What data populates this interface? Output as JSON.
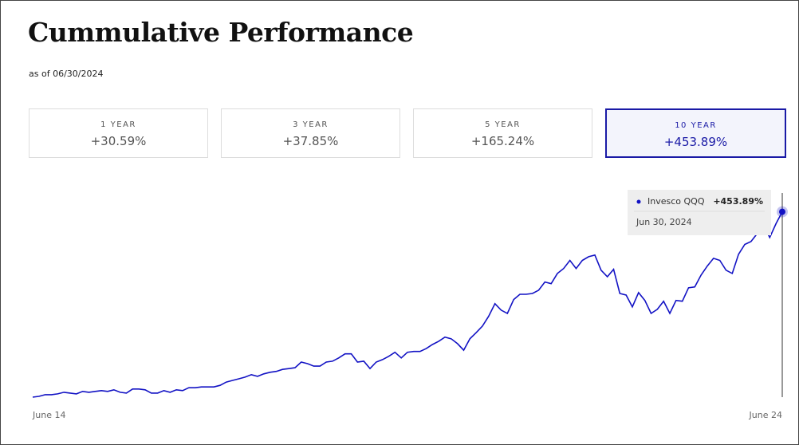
{
  "header": {
    "title": "Cummulative Performance",
    "subtitle": "as of 06/30/2024"
  },
  "tabs": [
    {
      "period": "1 YEAR",
      "value": "+30.59%"
    },
    {
      "period": "3 YEAR",
      "value": "+37.85%"
    },
    {
      "period": "5 YEAR",
      "value": "+165.24%"
    },
    {
      "period": "10 YEAR",
      "value": "+453.89%"
    }
  ],
  "selected_tab": 3,
  "chart_data": {
    "type": "line",
    "categories": [
      "June 14",
      null,
      null,
      null,
      null,
      null,
      null,
      null,
      null,
      null,
      null,
      null,
      null,
      null,
      null,
      null,
      null,
      null,
      null,
      null,
      null,
      null,
      null,
      null,
      null,
      null,
      null,
      null,
      null,
      null,
      null,
      null,
      null,
      null,
      null,
      null,
      null,
      null,
      null,
      null,
      null,
      null,
      null,
      null,
      null,
      null,
      null,
      null,
      null,
      null,
      null,
      null,
      null,
      null,
      null,
      null,
      null,
      null,
      null,
      null,
      null,
      null,
      null,
      null,
      null,
      null,
      null,
      null,
      null,
      null,
      null,
      null,
      null,
      null,
      null,
      null,
      null,
      null,
      null,
      null,
      null,
      null,
      null,
      null,
      null,
      null,
      null,
      null,
      null,
      null,
      null,
      null,
      null,
      null,
      null,
      null,
      null,
      null,
      null,
      null,
      null,
      null,
      null,
      null,
      null,
      null,
      null,
      null,
      null,
      null,
      null,
      null,
      null,
      null,
      null,
      null,
      null,
      null,
      null,
      null,
      "June 24"
    ],
    "series": [
      {
        "name": "Invesco QQQ",
        "color": "#1212c4",
        "values": [
          0,
          2,
          6,
          6,
          8,
          12,
          10,
          8,
          14,
          12,
          14,
          16,
          14,
          18,
          12,
          10,
          20,
          20,
          18,
          10,
          10,
          16,
          12,
          18,
          16,
          23,
          23,
          25,
          25,
          25,
          29,
          37,
          41,
          45,
          49,
          55,
          51,
          57,
          61,
          63,
          68,
          70,
          72,
          86,
          82,
          76,
          76,
          86,
          88,
          96,
          106,
          106,
          86,
          88,
          70,
          86,
          92,
          100,
          110,
          96,
          110,
          112,
          112,
          119,
          129,
          137,
          147,
          143,
          131,
          115,
          143,
          158,
          174,
          198,
          229,
          213,
          205,
          239,
          252,
          252,
          254,
          262,
          282,
          278,
          303,
          315,
          335,
          315,
          335,
          344,
          348,
          311,
          295,
          313,
          254,
          250,
          221,
          256,
          237,
          205,
          215,
          235,
          205,
          237,
          235,
          268,
          270,
          299,
          321,
          340,
          335,
          311,
          303,
          350,
          374,
          381,
          401,
          421,
          391,
          425,
          453.89
        ]
      }
    ],
    "ylim": [
      0,
      500
    ],
    "tooltip": {
      "value_label": "+453.89%",
      "date": "Jun 30, 2024"
    }
  }
}
